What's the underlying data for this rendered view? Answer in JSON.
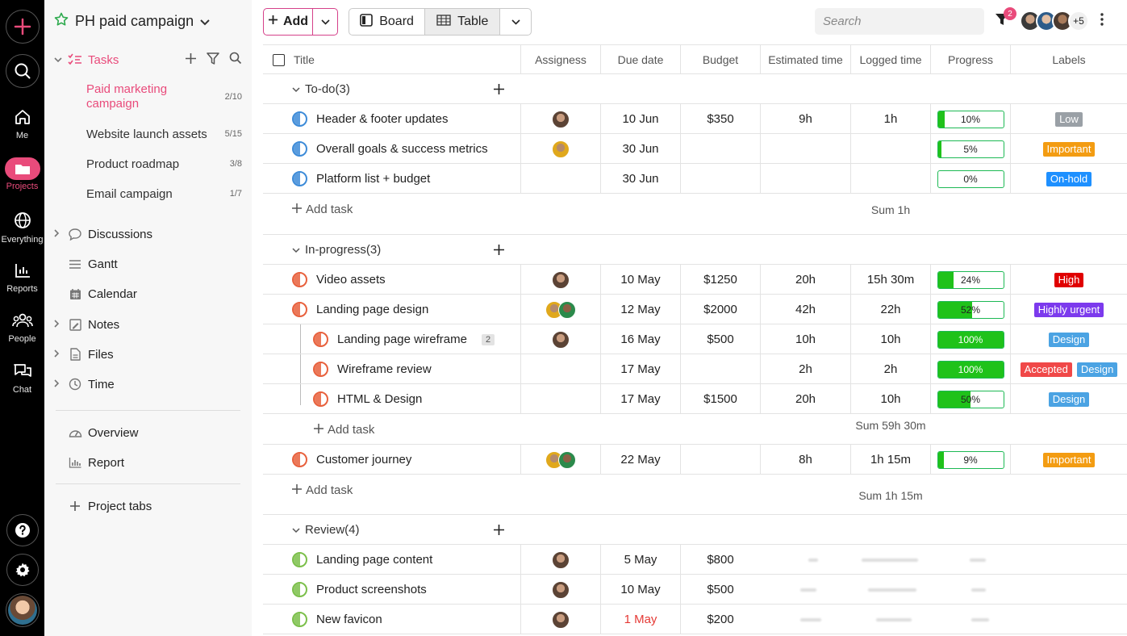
{
  "project": {
    "name": "PH paid campaign"
  },
  "rail": [
    {
      "label": "",
      "icon": "plus-icon"
    },
    {
      "label": "",
      "icon": "search-icon"
    },
    {
      "label": "Me",
      "icon": "home-icon"
    },
    {
      "label": "Projects",
      "icon": "folder-icon"
    },
    {
      "label": "Everything",
      "icon": "globe-icon"
    },
    {
      "label": "Reports",
      "icon": "bar-chart-icon"
    },
    {
      "label": "People",
      "icon": "people-icon"
    },
    {
      "label": "Chat",
      "icon": "chat-icon"
    }
  ],
  "sidebar": {
    "tasks_label": "Tasks",
    "task_lists": [
      {
        "name": "Paid marketing campaign",
        "count": "2/10"
      },
      {
        "name": "Website launch assets",
        "count": "5/15"
      },
      {
        "name": "Product roadmap",
        "count": "3/8"
      },
      {
        "name": "Email campaign",
        "count": "1/7"
      }
    ],
    "sections": [
      "Discussions",
      "Gantt",
      "Calendar",
      "Notes",
      "Files",
      "Time"
    ],
    "extras": [
      "Overview",
      "Report"
    ],
    "project_tabs": "Project tabs"
  },
  "toolbar": {
    "add_label": "Add",
    "board_label": "Board",
    "table_label": "Table",
    "search_placeholder": "Search",
    "filter_badge": "2",
    "more_members": "+5"
  },
  "columns": [
    "Title",
    "Assigness",
    "Due date",
    "Budget",
    "Estimated time",
    "Logged time",
    "Progress",
    "Labels"
  ],
  "groups": [
    {
      "name": "To-do(3)",
      "tasks": [
        {
          "title": "Header & footer updates",
          "due": "10 Jun",
          "budget": "$350",
          "est": "9h",
          "logged": "1h",
          "progress": "10%",
          "labels": [
            "Low"
          ]
        },
        {
          "title": "Overall goals & success metrics",
          "due": "30 Jun",
          "budget": "",
          "est": "",
          "logged": "",
          "progress": "5%",
          "labels": [
            "Important"
          ]
        },
        {
          "title": "Platform list + budget",
          "due": "30 Jun",
          "budget": "",
          "est": "",
          "logged": "",
          "progress": "0%",
          "labels": [
            "On-hold"
          ]
        }
      ],
      "add_task": "Add task",
      "sum": "Sum 1h"
    },
    {
      "name": "In-progress(3)",
      "tasks": [
        {
          "title": "Video assets",
          "due": "10 May",
          "budget": "$1250",
          "est": "20h",
          "logged": "15h 30m",
          "progress": "24%",
          "labels": [
            "High"
          ]
        },
        {
          "title": "Landing page design",
          "due": "12 May",
          "budget": "$2000",
          "est": "42h",
          "logged": "22h",
          "progress": "52%",
          "labels": [
            "Highly urgent"
          ]
        },
        {
          "title": "Landing page wireframe",
          "subcount": "2",
          "due": "16 May",
          "budget": "$500",
          "est": "10h",
          "logged": "10h",
          "progress": "100%",
          "labels": [
            "Design"
          ]
        },
        {
          "title": "Wireframe review",
          "due": "17 May",
          "budget": "",
          "est": "2h",
          "logged": "2h",
          "progress": "100%",
          "labels": [
            "Accepted",
            "Design"
          ]
        },
        {
          "title": "HTML & Design",
          "due": "17 May",
          "budget": "$1500",
          "est": "20h",
          "logged": "10h",
          "progress": "50%",
          "labels": [
            "Design"
          ]
        },
        {
          "title": "Customer journey",
          "due": "22 May",
          "budget": "",
          "est": "8h",
          "logged": "1h 15m",
          "progress": "9%",
          "labels": [
            "Important"
          ]
        }
      ],
      "subtask_add": "Add task",
      "subtask_sum": "Sum 59h 30m",
      "add_task": "Add task",
      "sum": "Sum 1h 15m"
    },
    {
      "name": "Review(4)",
      "tasks": [
        {
          "title": "Landing page content",
          "due": "5 May",
          "budget": "$800"
        },
        {
          "title": "Product screenshots",
          "due": "10 May",
          "budget": "$500"
        },
        {
          "title": "New favicon",
          "due": "1 May",
          "budget": "$200"
        }
      ]
    }
  ],
  "colors": {
    "accent": "#e94b7b",
    "progress": "#1fc21a",
    "label_low": "#9aa0a6",
    "label_important": "#f39c12",
    "label_onhold": "#1e90ff",
    "label_high": "#e00000",
    "label_highly_urgent": "#7c3aed",
    "label_design": "#4ba3e3",
    "label_accepted": "#f04848"
  }
}
